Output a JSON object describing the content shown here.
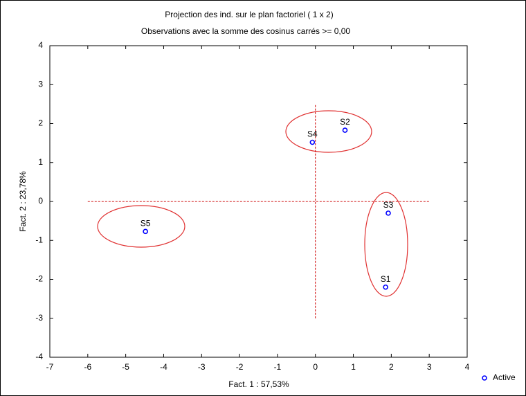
{
  "chart_data": {
    "type": "scatter",
    "title": "Projection des ind. sur le plan factoriel ( 1 x  2)",
    "subtitle": "Observations avec la somme des cosinus carrés >= 0,00",
    "x_label": "Fact. 1 : 57,53%",
    "y_label": "Fact. 2 : 23,78%",
    "xlim": [
      -7,
      4
    ],
    "ylim": [
      -4,
      4
    ],
    "xticks": [
      -7,
      -6,
      -5,
      -4,
      -3,
      -2,
      -1,
      0,
      1,
      2,
      3,
      4
    ],
    "yticks": [
      -4,
      -3,
      -2,
      -1,
      0,
      1,
      2,
      3,
      4
    ],
    "series": [
      {
        "name": "Active",
        "color": "#0000ff",
        "labels": [
          "S1",
          "S2",
          "S3",
          "S4",
          "S5"
        ],
        "x": [
          1.85,
          0.78,
          1.92,
          -0.08,
          -4.48
        ],
        "values": [
          -2.2,
          1.83,
          -0.3,
          1.52,
          -0.77
        ]
      }
    ],
    "reference_lines": [
      {
        "axis": "y",
        "value": 0,
        "from": -6,
        "to": 3,
        "color": "#cc0000"
      },
      {
        "axis": "x",
        "value": 0,
        "from": -3,
        "to": 2.5,
        "color": "#cc0000"
      }
    ],
    "legend": "bottom-right"
  }
}
